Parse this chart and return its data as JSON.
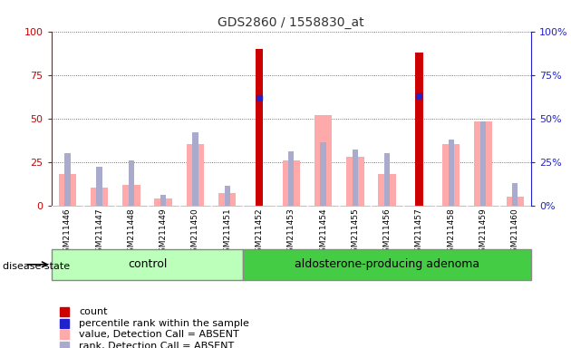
{
  "title": "GDS2860 / 1558830_at",
  "samples": [
    "GSM211446",
    "GSM211447",
    "GSM211448",
    "GSM211449",
    "GSM211450",
    "GSM211451",
    "GSM211452",
    "GSM211453",
    "GSM211454",
    "GSM211455",
    "GSM211456",
    "GSM211457",
    "GSM211458",
    "GSM211459",
    "GSM211460"
  ],
  "count_values": [
    0,
    0,
    0,
    0,
    0,
    0,
    90,
    0,
    0,
    0,
    0,
    88,
    0,
    0,
    0
  ],
  "percentile_rank_values": [
    null,
    null,
    null,
    null,
    null,
    null,
    62,
    null,
    null,
    null,
    null,
    63,
    null,
    null,
    null
  ],
  "value_absent": [
    18,
    10,
    12,
    4,
    35,
    7,
    null,
    26,
    52,
    28,
    18,
    null,
    35,
    48,
    5
  ],
  "rank_absent": [
    30,
    22,
    26,
    6,
    42,
    11,
    null,
    31,
    36,
    32,
    30,
    null,
    38,
    48,
    13
  ],
  "n_control": 6,
  "n_adenoma": 9,
  "ylim": [
    0,
    100
  ],
  "yticks": [
    0,
    25,
    50,
    75,
    100
  ],
  "count_color": "#cc0000",
  "percentile_color": "#2222cc",
  "value_absent_color": "#ffaaaa",
  "rank_absent_color": "#aaaacc",
  "control_color": "#bbffbb",
  "adenoma_color": "#44cc44",
  "bg_color": "#cccccc",
  "left_axis_color": "#cc0000",
  "right_axis_color": "#2222cc",
  "title_color": "#333333"
}
